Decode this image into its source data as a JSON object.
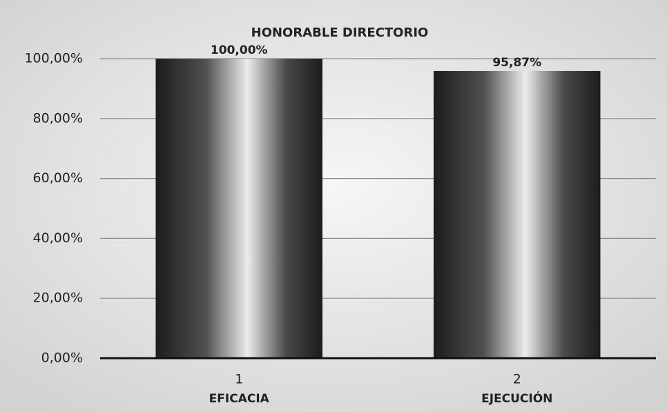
{
  "chart_data": {
    "type": "bar",
    "title": "HONORABLE DIRECTORIO",
    "categories": [
      "1",
      "2"
    ],
    "category_labels": [
      "EFICACIA",
      "EJECUCIÓN"
    ],
    "values": [
      100,
      95.87
    ],
    "value_labels": [
      "100,00%",
      "95,87%"
    ],
    "color": "#1c1c1c",
    "ylim": [
      0,
      100
    ],
    "yticks": [
      {
        "value": 0,
        "label": "0,00%"
      },
      {
        "value": 20,
        "label": "20,00%"
      },
      {
        "value": 40,
        "label": "40,00%"
      },
      {
        "value": 60,
        "label": "60,00%"
      },
      {
        "value": 80,
        "label": "80,00%"
      },
      {
        "value": 100,
        "label": "100,00%"
      }
    ],
    "grid": true
  }
}
